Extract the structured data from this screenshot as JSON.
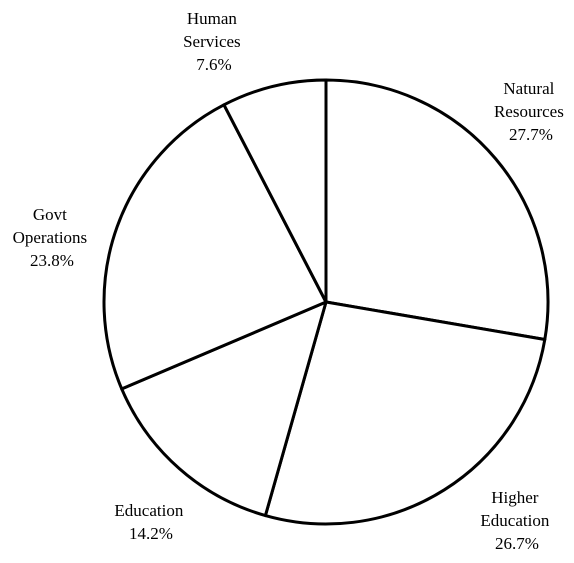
{
  "chart_data": {
    "type": "pie",
    "title": "",
    "slices": [
      {
        "lines": [
          "Natural",
          "Resources"
        ],
        "pct": "27.7%",
        "value": 27.7
      },
      {
        "lines": [
          "Higher",
          "Education"
        ],
        "pct": "26.7%",
        "value": 26.7
      },
      {
        "lines": [
          "Education"
        ],
        "pct": "14.2%",
        "value": 14.2
      },
      {
        "lines": [
          "Govt",
          "Operations"
        ],
        "pct": "23.8%",
        "value": 23.8
      },
      {
        "lines": [
          "Human",
          "Services"
        ],
        "pct": "7.6%",
        "value": 7.6
      }
    ],
    "slice_fill": "#ffffff",
    "edge_color": "#000000",
    "start_direction": "clockwise from top",
    "legend": "none"
  }
}
